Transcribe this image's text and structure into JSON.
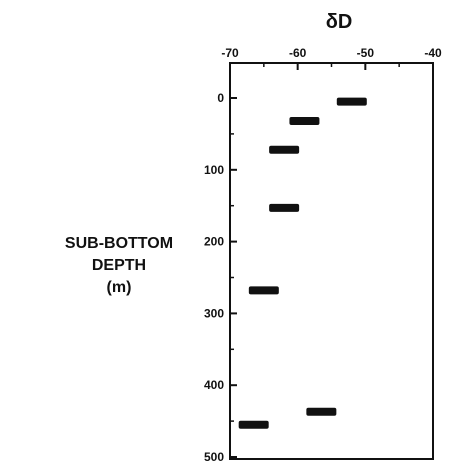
{
  "chart_data": {
    "type": "scatter",
    "title": "δD",
    "xlabel": "",
    "ylabel_lines": [
      "SUB-BOTTOM",
      "DEPTH",
      "(m)"
    ],
    "x_axis_position": "top",
    "y_axis_inverted": true,
    "xlim": [
      -70,
      -40
    ],
    "ylim": [
      -30,
      500
    ],
    "xticks": [
      -70,
      -60,
      -50,
      -40
    ],
    "xtick_labels": [
      "-70",
      "-60",
      "-50",
      "-40"
    ],
    "xminor_ticks": [
      -65,
      -55,
      -45
    ],
    "yticks": [
      0,
      100,
      200,
      300,
      400,
      500
    ],
    "ytick_labels": [
      "0",
      "100",
      "200",
      "300",
      "400",
      "500"
    ],
    "yminor_ticks": [
      50,
      150,
      250,
      350,
      450
    ],
    "grid": false,
    "marker": "horizontal-bar",
    "colors": {
      "mark": "#111111",
      "axis": "#111111"
    },
    "points": [
      {
        "x": -52,
        "y": 5
      },
      {
        "x": -59,
        "y": 32
      },
      {
        "x": -62,
        "y": 72
      },
      {
        "x": -62,
        "y": 153
      },
      {
        "x": -65,
        "y": 268
      },
      {
        "x": -56.5,
        "y": 437
      },
      {
        "x": -66.5,
        "y": 455
      }
    ]
  }
}
